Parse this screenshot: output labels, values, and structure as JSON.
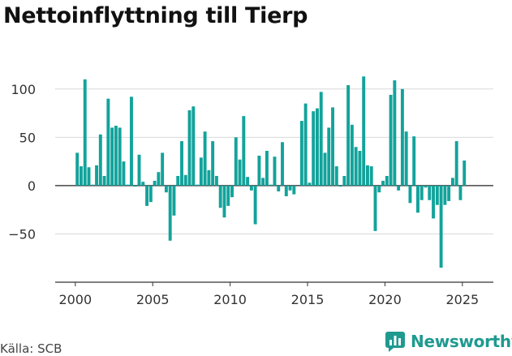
{
  "title": "Nettoinflyttning till Tierp",
  "source": "Källa: SCB",
  "logo_text": "Newsworthy",
  "colors": {
    "bar": "#12a39b",
    "grid": "#d9d9d9",
    "axis": "#333333",
    "logo": "#1f9a8f"
  },
  "chart_data": {
    "type": "bar",
    "xlim": [
      1998.7,
      2027.0
    ],
    "ylim": [
      -100,
      125
    ],
    "yticks": [
      -50,
      0,
      50,
      100
    ],
    "ytick_labels": [
      "−50",
      "0",
      "50",
      "100"
    ],
    "xticks": [
      2000,
      2005,
      2010,
      2015,
      2020,
      2025
    ],
    "xtick_labels": [
      "2000",
      "2005",
      "2010",
      "2015",
      "2020",
      "2025"
    ],
    "grid": true,
    "legend": "none",
    "x": [
      2000.125,
      2000.375,
      2000.625,
      2000.875,
      2001.125,
      2001.375,
      2001.625,
      2001.875,
      2002.125,
      2002.375,
      2002.625,
      2002.875,
      2003.125,
      2003.375,
      2003.625,
      2003.875,
      2004.125,
      2004.375,
      2004.625,
      2004.875,
      2005.125,
      2005.375,
      2005.625,
      2005.875,
      2006.125,
      2006.375,
      2006.625,
      2006.875,
      2007.125,
      2007.375,
      2007.625,
      2007.875,
      2008.125,
      2008.375,
      2008.625,
      2008.875,
      2009.125,
      2009.375,
      2009.625,
      2009.875,
      2010.125,
      2010.375,
      2010.625,
      2010.875,
      2011.125,
      2011.375,
      2011.625,
      2011.875,
      2012.125,
      2012.375,
      2012.625,
      2012.875,
      2013.125,
      2013.375,
      2013.625,
      2013.875,
      2014.125,
      2014.375,
      2014.625,
      2014.875,
      2015.125,
      2015.375,
      2015.625,
      2015.875,
      2016.125,
      2016.375,
      2016.625,
      2016.875,
      2017.125,
      2017.375,
      2017.625,
      2017.875,
      2018.125,
      2018.375,
      2018.625,
      2018.875,
      2019.125,
      2019.375,
      2019.625,
      2019.875,
      2020.125,
      2020.375,
      2020.625,
      2020.875,
      2021.125,
      2021.375,
      2021.625,
      2021.875,
      2022.125,
      2022.375,
      2022.625,
      2022.875,
      2023.125,
      2023.375,
      2023.625,
      2023.875,
      2024.125,
      2024.375,
      2024.625,
      2024.875,
      2025.125,
      2025.375
    ],
    "values": [
      34,
      20,
      110,
      19,
      1,
      21,
      53,
      10,
      90,
      60,
      62,
      60,
      25,
      1,
      92,
      -1,
      32,
      4,
      -21,
      -17,
      5,
      14,
      34,
      -7,
      -57,
      -31,
      10,
      46,
      11,
      78,
      82,
      1,
      29,
      56,
      16,
      46,
      10,
      -23,
      -33,
      -21,
      -12,
      50,
      27,
      72,
      9,
      -5,
      -40,
      31,
      8,
      36,
      1,
      30,
      -6,
      45,
      -11,
      -5,
      -9,
      0,
      67,
      85,
      3,
      77,
      80,
      97,
      34,
      60,
      81,
      20,
      -1,
      10,
      104,
      63,
      40,
      36,
      113,
      21,
      20,
      -47,
      -7,
      5,
      10,
      94,
      109,
      -5,
      100,
      56,
      -18,
      51,
      -28,
      -15,
      -2,
      -15,
      -34,
      -20,
      -85,
      -20,
      -16,
      8,
      46,
      -15,
      26,
      0
    ]
  }
}
